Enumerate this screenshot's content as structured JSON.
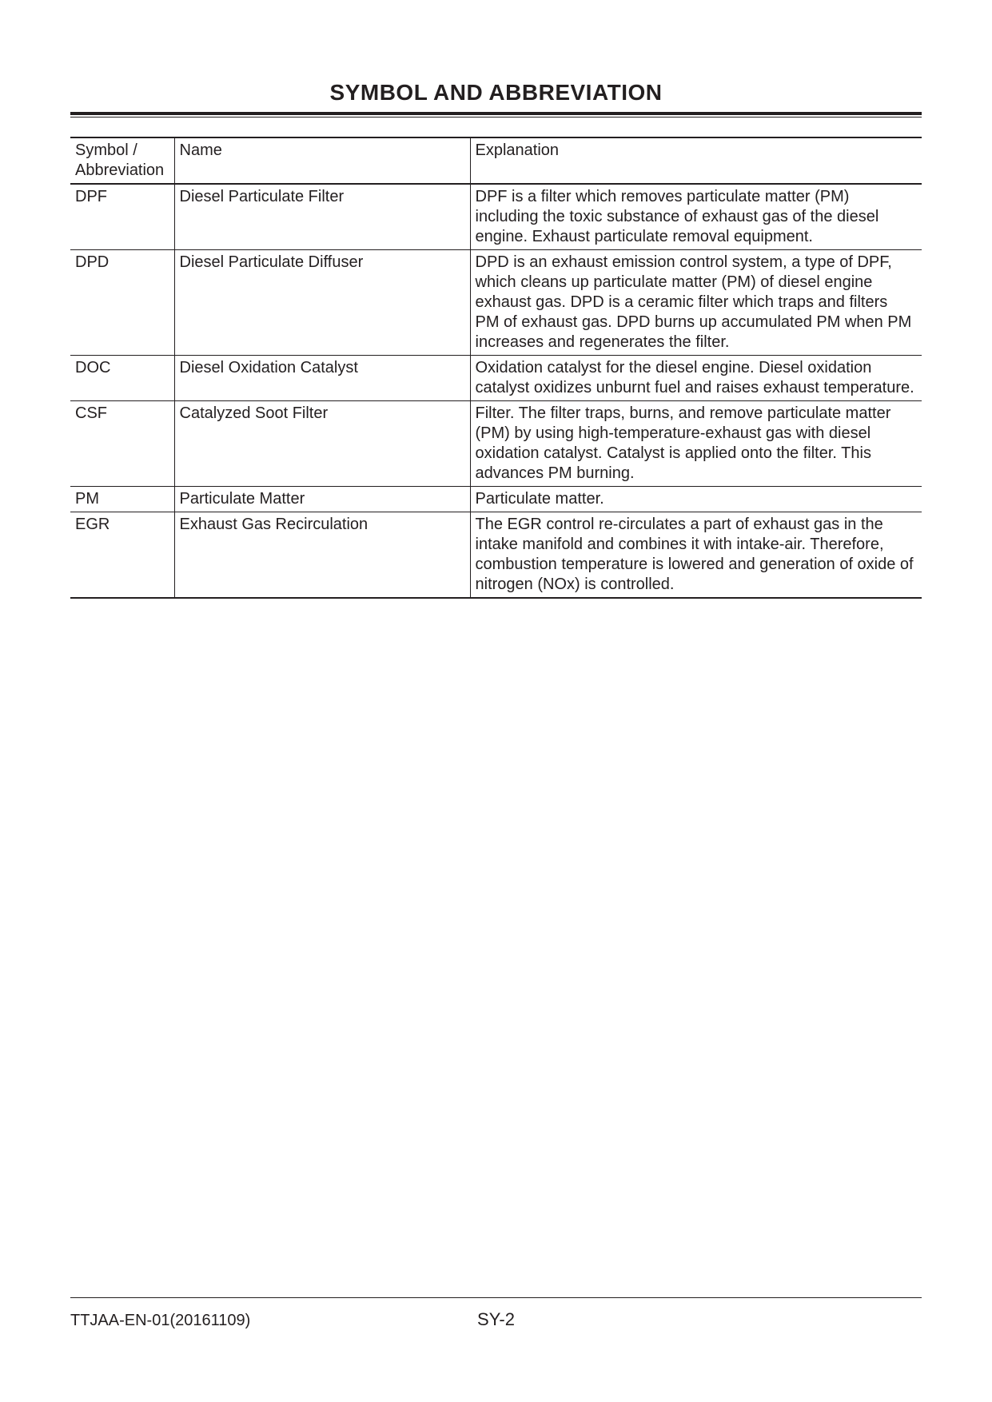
{
  "title": "SYMBOL AND ABBREVIATION",
  "headers": {
    "symbol": "Symbol / Abbreviation",
    "name": "Name",
    "explanation": "Explanation"
  },
  "rows": [
    {
      "symbol": "DPF",
      "name": "Diesel Particulate Filter",
      "explanation": "DPF is a filter which removes particulate matter (PM) including the toxic substance of exhaust gas of the diesel engine. Exhaust particulate removal equipment."
    },
    {
      "symbol": "DPD",
      "name": "Diesel Particulate Diffuser",
      "explanation": "DPD is an exhaust emission control system, a type of DPF, which cleans up particulate matter (PM) of diesel engine exhaust gas. DPD is a ceramic filter which traps and filters PM of exhaust gas. DPD burns up accumulated PM when PM increases and regenerates the filter."
    },
    {
      "symbol": "DOC",
      "name": "Diesel Oxidation Catalyst",
      "explanation": "Oxidation catalyst for the diesel engine. Diesel oxidation catalyst oxidizes unburnt fuel and raises exhaust temperature."
    },
    {
      "symbol": "CSF",
      "name": "Catalyzed Soot Filter",
      "explanation": "Filter. The filter traps, burns, and remove particulate matter (PM) by using high-temperature-exhaust gas with diesel oxidation catalyst. Catalyst is applied onto the filter. This advances PM burning."
    },
    {
      "symbol": "PM",
      "name": "Particulate Matter",
      "explanation": "Particulate matter."
    },
    {
      "symbol": "EGR",
      "name": "Exhaust Gas Recirculation",
      "explanation": "The EGR control re-circulates a part of exhaust gas in the intake manifold and combines it with intake-air. Therefore, combustion temperature is lowered and generation of oxide of nitrogen (NOx) is controlled."
    }
  ],
  "footer": {
    "doc_code": "TTJAA-EN-01(20161109)",
    "page": "SY-2"
  }
}
